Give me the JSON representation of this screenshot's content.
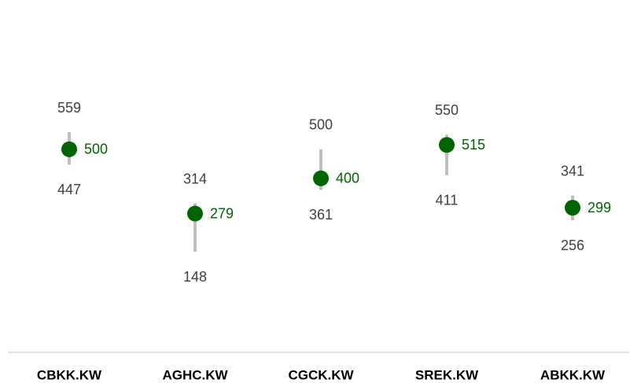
{
  "chart_data": {
    "type": "range",
    "categories": [
      "CBKK.KW",
      "AGHC.KW",
      "CGCK.KW",
      "SREK.KW",
      "ABKK.KW"
    ],
    "high": [
      559,
      314,
      500,
      550,
      341
    ],
    "low": [
      447,
      148,
      361,
      411,
      256
    ],
    "values": [
      500,
      279,
      400,
      515,
      299
    ],
    "color": "#006400",
    "range_color": "#bfbfbf"
  }
}
